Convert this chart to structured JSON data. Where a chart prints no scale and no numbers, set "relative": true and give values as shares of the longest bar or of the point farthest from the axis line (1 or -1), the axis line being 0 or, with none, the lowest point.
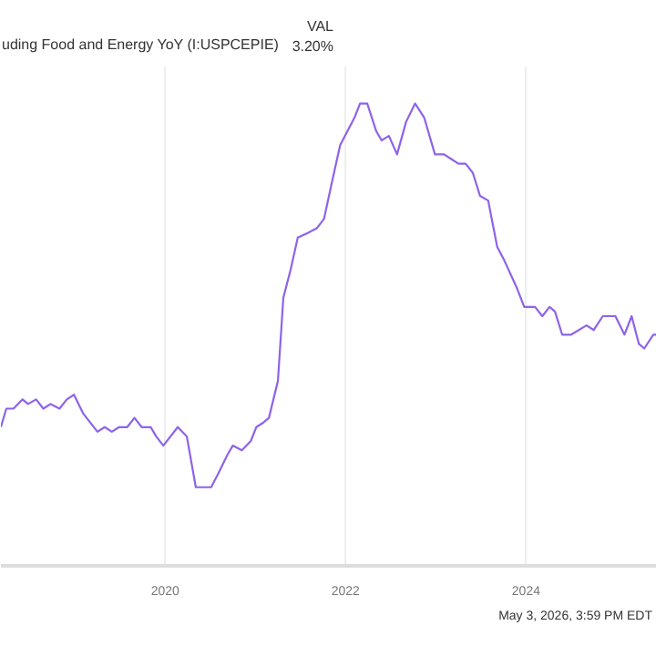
{
  "chart_data": {
    "type": "line",
    "title": "uding Food and Energy YoY (I:USPCEPIE)",
    "relative": true,
    "x": [
      2018.18,
      2018.24,
      2018.32,
      2018.42,
      2018.48,
      2018.57,
      2018.65,
      2018.73,
      2018.83,
      2018.91,
      2018.99,
      2019.09,
      2019.25,
      2019.33,
      2019.41,
      2019.49,
      2019.58,
      2019.66,
      2019.74,
      2019.84,
      2019.9,
      2019.98,
      2020.14,
      2020.24,
      2020.34,
      2020.44,
      2020.51,
      2020.59,
      2020.69,
      2020.75,
      2020.85,
      2020.95,
      2021.01,
      2021.09,
      2021.15,
      2021.25,
      2021.31,
      2021.39,
      2021.47,
      2021.58,
      2021.68,
      2021.76,
      2021.86,
      2021.94,
      2022.02,
      2022.1,
      2022.16,
      2022.24,
      2022.34,
      2022.4,
      2022.48,
      2022.57,
      2022.67,
      2022.77,
      2022.87,
      2022.99,
      2023.09,
      2023.17,
      2023.25,
      2023.33,
      2023.41,
      2023.49,
      2023.58,
      2023.62,
      2023.68,
      2023.76,
      2023.9,
      2023.98,
      2024.1,
      2024.18,
      2024.26,
      2024.32,
      2024.4,
      2024.5,
      2024.67,
      2024.75,
      2024.85,
      2024.99,
      2025.09,
      2025.17,
      2025.25,
      2025.31,
      2025.41,
      2025.45
    ],
    "series": [
      {
        "color": "#8e63e8",
        "values": [
          0.3,
          0.34,
          0.34,
          0.36,
          0.35,
          0.36,
          0.34,
          0.35,
          0.34,
          0.36,
          0.37,
          0.33,
          0.29,
          0.3,
          0.29,
          0.3,
          0.3,
          0.32,
          0.3,
          0.3,
          0.28,
          0.26,
          0.3,
          0.28,
          0.17,
          0.17,
          0.17,
          0.2,
          0.24,
          0.26,
          0.25,
          0.27,
          0.3,
          0.31,
          0.32,
          0.4,
          0.58,
          0.64,
          0.71,
          0.72,
          0.73,
          0.75,
          0.84,
          0.91,
          0.94,
          0.97,
          1.0,
          1.0,
          0.94,
          0.92,
          0.93,
          0.89,
          0.96,
          1.0,
          0.97,
          0.89,
          0.89,
          0.88,
          0.87,
          0.87,
          0.85,
          0.8,
          0.79,
          0.75,
          0.69,
          0.66,
          0.6,
          0.56,
          0.56,
          0.54,
          0.56,
          0.55,
          0.5,
          0.5,
          0.52,
          0.51,
          0.54,
          0.54,
          0.5,
          0.54,
          0.48,
          0.47,
          0.5,
          0.5
        ]
      }
    ],
    "xlim": [
      2018.18,
      2025.45
    ],
    "xticks": [
      2020,
      2022,
      2024
    ],
    "grid": "x",
    "annotations": [
      "VAL",
      "3.20%",
      "May 3, 2026, 3:59 PM EDT"
    ]
  }
}
